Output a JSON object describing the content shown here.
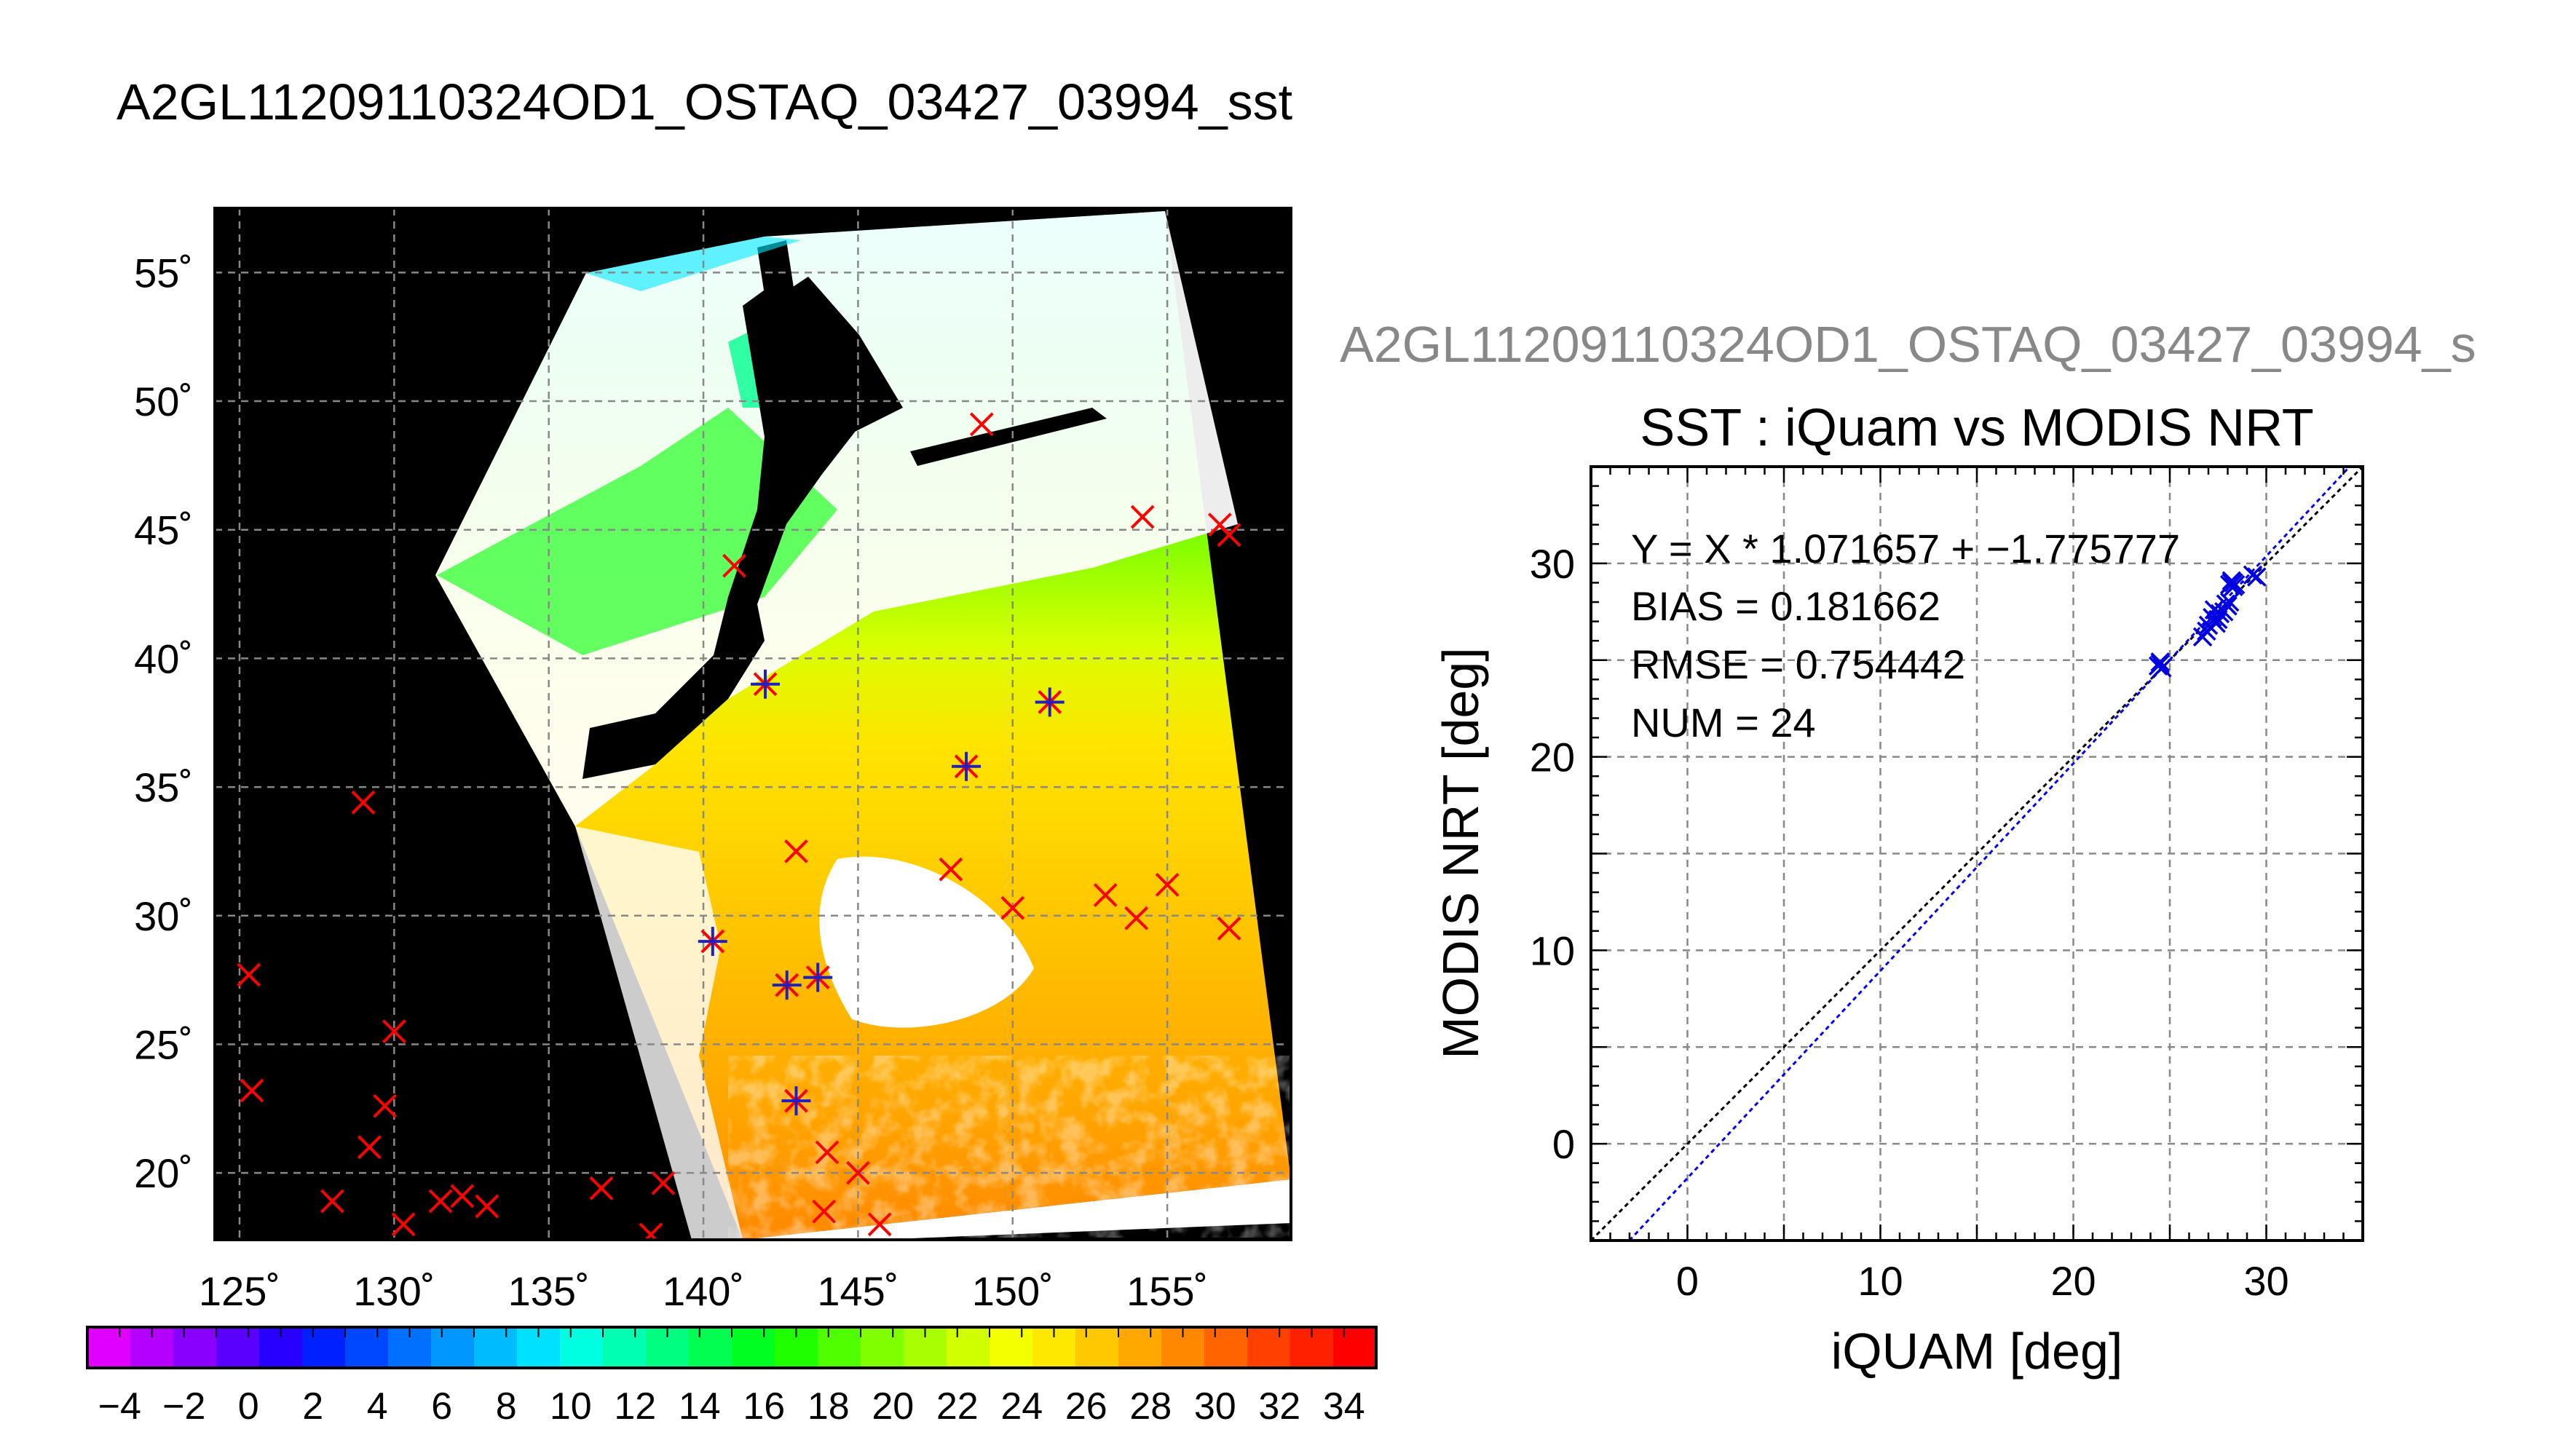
{
  "page": {
    "title": "A2GL11209110324OD1_OSTAQ_03427_03994_sst"
  },
  "map": {
    "lon_ticks": [
      "125˚",
      "130˚",
      "135˚",
      "140˚",
      "145˚",
      "150˚",
      "155˚"
    ],
    "lat_ticks": [
      "55˚",
      "50˚",
      "45˚",
      "40˚",
      "35˚",
      "30˚",
      "25˚",
      "20˚"
    ],
    "lon_values": [
      125,
      130,
      135,
      140,
      145,
      150,
      155
    ],
    "lat_values": [
      55,
      50,
      45,
      40,
      35,
      30,
      25,
      20
    ],
    "lon_range": [
      124.2,
      159.0
    ],
    "lat_range": [
      17.4,
      57.5
    ],
    "in_situ_points_red": [
      [
        149.0,
        49.1
      ],
      [
        154.2,
        45.5
      ],
      [
        156.7,
        45.2
      ],
      [
        157.0,
        44.8
      ],
      [
        141.0,
        43.6
      ],
      [
        142.0,
        39.0
      ],
      [
        151.2,
        38.3
      ],
      [
        148.5,
        35.8
      ],
      [
        129.0,
        34.4
      ],
      [
        143.0,
        32.5
      ],
      [
        148.0,
        31.8
      ],
      [
        150.0,
        30.3
      ],
      [
        153.0,
        30.8
      ],
      [
        155.0,
        31.2
      ],
      [
        154.0,
        29.9
      ],
      [
        157.0,
        29.5
      ],
      [
        140.3,
        29.0
      ],
      [
        125.3,
        27.7
      ],
      [
        143.7,
        27.6
      ],
      [
        142.7,
        27.3
      ],
      [
        130.0,
        25.5
      ],
      [
        125.4,
        23.2
      ],
      [
        129.7,
        22.6
      ],
      [
        143.0,
        22.8
      ],
      [
        129.2,
        21.0
      ],
      [
        144.0,
        20.8
      ],
      [
        145.0,
        20.0
      ],
      [
        128.0,
        18.9
      ],
      [
        131.5,
        18.9
      ],
      [
        132.2,
        19.1
      ],
      [
        133.0,
        18.7
      ],
      [
        136.7,
        19.4
      ],
      [
        138.7,
        19.6
      ],
      [
        143.9,
        18.5
      ],
      [
        130.3,
        18.0
      ],
      [
        138.3,
        17.6
      ],
      [
        145.7,
        18.0
      ]
    ],
    "matchup_points_blue": [
      [
        142.0,
        39.0
      ],
      [
        151.2,
        38.3
      ],
      [
        148.5,
        35.8
      ],
      [
        140.3,
        29.0
      ],
      [
        142.7,
        27.3
      ],
      [
        143.7,
        27.6
      ],
      [
        143.0,
        22.8
      ]
    ]
  },
  "colorbar": {
    "min": -5,
    "max": 35,
    "tick_labels": [
      "−4",
      "−2",
      "0",
      "2",
      "4",
      "6",
      "8",
      "10",
      "12",
      "14",
      "16",
      "18",
      "20",
      "22",
      "24",
      "26",
      "28",
      "30",
      "32",
      "34"
    ],
    "tick_values": [
      -4,
      -2,
      0,
      2,
      4,
      6,
      8,
      10,
      12,
      14,
      16,
      18,
      20,
      22,
      24,
      26,
      28,
      30,
      32,
      34
    ],
    "colors": [
      "#e000ff",
      "#b400ff",
      "#8a00ff",
      "#5a00ff",
      "#2800ff",
      "#0020ff",
      "#0048ff",
      "#0070ff",
      "#0098ff",
      "#00bcff",
      "#00e0ff",
      "#00ffe0",
      "#00ffb0",
      "#00ff80",
      "#00ff50",
      "#00ff20",
      "#20ff00",
      "#50ff00",
      "#80ff00",
      "#a8ff00",
      "#d0ff00",
      "#f4ff00",
      "#ffe800",
      "#ffc800",
      "#ffa800",
      "#ff8800",
      "#ff6400",
      "#ff4000",
      "#ff2000",
      "#ff0000"
    ]
  },
  "scatter": {
    "file_label": "A2GL11209110324OD1_OSTAQ_03427_03994_s",
    "title": "SST : iQuam vs MODIS NRT",
    "xlabel": "iQUAM [deg]",
    "ylabel": "MODIS NRT [deg]",
    "stats": {
      "fit": "Y = X * 1.071657 + −1.775777",
      "bias": "BIAS = 0.181662",
      "rmse": "RMSE = 0.754442",
      "num": "NUM = 24"
    }
  },
  "chart_data": {
    "type": "scatter",
    "title": "SST : iQuam vs MODIS NRT",
    "xlabel": "iQUAM [deg]",
    "ylabel": "MODIS NRT [deg]",
    "xlim": [
      -5,
      35
    ],
    "ylim": [
      -5,
      35
    ],
    "xticks": [
      0,
      10,
      20,
      30
    ],
    "yticks": [
      0,
      10,
      20,
      30
    ],
    "tick_labels_x": [
      "0",
      "10",
      "20",
      "30"
    ],
    "tick_labels_y": [
      "0",
      "10",
      "20",
      "30"
    ],
    "grid": true,
    "series": [
      {
        "x": [
          24.4,
          24.5,
          24.6,
          24.5,
          26.7,
          26.9,
          27.4,
          27.5,
          27.6,
          27.3,
          27.8,
          27.9,
          28.0,
          28.1,
          28.2,
          28.2,
          28.3,
          28.4,
          29.5,
          29.3,
          27.2,
          27.0,
          28.3,
          28.1
        ],
        "y": [
          24.7,
          24.8,
          24.6,
          24.9,
          26.2,
          26.5,
          26.9,
          27.1,
          27.4,
          27.6,
          27.5,
          27.9,
          27.8,
          28.0,
          29.0,
          29.1,
          29.0,
          28.9,
          29.3,
          29.4,
          27.2,
          26.8,
          28.8,
          28.9
        ]
      }
    ],
    "lines": [
      {
        "name": "1:1",
        "slope": 1,
        "intercept": 0,
        "color": "#000000"
      },
      {
        "name": "fit",
        "slope": 1.071657,
        "intercept": -1.775777,
        "color": "#0000ff"
      }
    ]
  }
}
